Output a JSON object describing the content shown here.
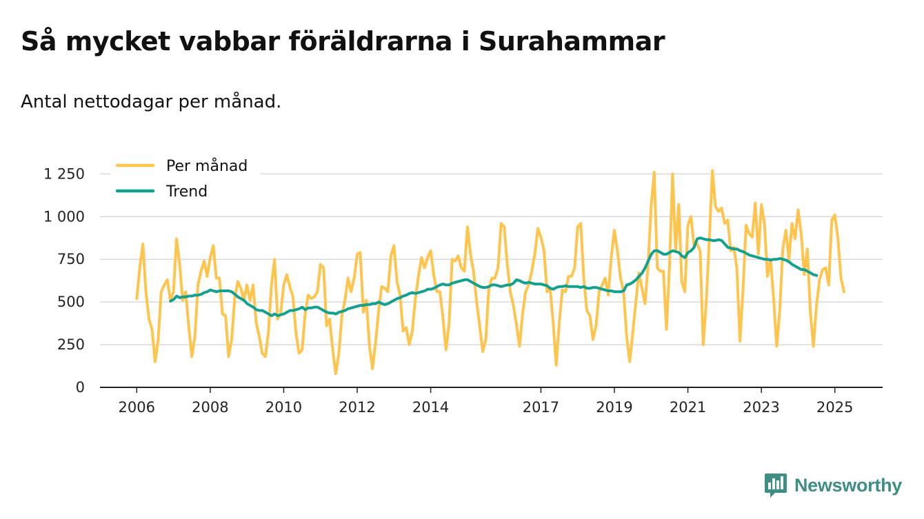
{
  "title": "Så mycket vabbar föräldrarna i Surahammar",
  "subtitle": "Antal nettodagar per månad.",
  "brand": {
    "name": "Newsworthy",
    "icon": "bar-chart-speech-bubble-icon",
    "color": "#3d8f85"
  },
  "chart_data": {
    "type": "line",
    "title": "Så mycket vabbar föräldrarna i Surahammar",
    "subtitle": "Antal nettodagar per månad.",
    "xlabel": "",
    "ylabel": "",
    "x_start": 2006.0,
    "x_step_months": 1,
    "xlim": [
      2005.0,
      2026.3
    ],
    "ylim": [
      0,
      1320
    ],
    "y_ticks": [
      {
        "value": 0,
        "label": "0"
      },
      {
        "value": 250,
        "label": "250"
      },
      {
        "value": 500,
        "label": "500"
      },
      {
        "value": 750,
        "label": "750"
      },
      {
        "value": 1000,
        "label": "1 000"
      },
      {
        "value": 1250,
        "label": "1 250"
      }
    ],
    "x_ticks": [
      {
        "value": 2006,
        "label": "2006"
      },
      {
        "value": 2008,
        "label": "2008"
      },
      {
        "value": 2010,
        "label": "2010"
      },
      {
        "value": 2012,
        "label": "2012"
      },
      {
        "value": 2014,
        "label": "2014"
      },
      {
        "value": 2017,
        "label": "2017"
      },
      {
        "value": 2019,
        "label": "2019"
      },
      {
        "value": 2021,
        "label": "2021"
      },
      {
        "value": 2023,
        "label": "2023"
      },
      {
        "value": 2025,
        "label": "2025"
      }
    ],
    "grid": true,
    "legend_position": "top-left",
    "series": [
      {
        "name": "Per månad",
        "color": "#ffc44d",
        "start": 2006.0,
        "values": [
          520,
          700,
          840,
          560,
          400,
          340,
          150,
          280,
          560,
          600,
          630,
          510,
          560,
          870,
          720,
          510,
          560,
          350,
          180,
          300,
          600,
          680,
          740,
          650,
          760,
          830,
          640,
          640,
          430,
          420,
          180,
          280,
          520,
          620,
          580,
          510,
          600,
          510,
          600,
          380,
          300,
          200,
          180,
          320,
          600,
          750,
          400,
          430,
          600,
          660,
          590,
          530,
          320,
          200,
          220,
          430,
          540,
          520,
          530,
          560,
          720,
          700,
          360,
          400,
          220,
          80,
          200,
          420,
          510,
          640,
          560,
          640,
          780,
          790,
          440,
          510,
          240,
          110,
          260,
          450,
          590,
          580,
          560,
          770,
          830,
          620,
          540,
          330,
          350,
          250,
          330,
          520,
          650,
          760,
          700,
          760,
          800,
          660,
          560,
          560,
          410,
          220,
          370,
          750,
          740,
          770,
          700,
          680,
          940,
          780,
          680,
          500,
          360,
          210,
          280,
          580,
          640,
          640,
          700,
          960,
          940,
          720,
          560,
          480,
          370,
          240,
          430,
          560,
          600,
          680,
          780,
          930,
          880,
          800,
          560,
          580,
          380,
          130,
          380,
          570,
          560,
          650,
          650,
          700,
          940,
          960,
          640,
          450,
          420,
          280,
          360,
          560,
          600,
          640,
          540,
          770,
          920,
          800,
          640,
          560,
          300,
          150,
          320,
          500,
          670,
          580,
          490,
          720,
          1060,
          1260,
          700,
          680,
          680,
          340,
          710,
          1250,
          800,
          1070,
          620,
          560,
          950,
          1000,
          830,
          840,
          800,
          250,
          500,
          870,
          1270,
          1060,
          1030,
          1050,
          960,
          980,
          800,
          820,
          700,
          270,
          570,
          950,
          900,
          880,
          1080,
          780,
          1070,
          960,
          650,
          750,
          520,
          240,
          450,
          810,
          920,
          750,
          960,
          870,
          1040,
          900,
          660,
          810,
          440,
          240,
          480,
          630,
          690,
          700,
          600,
          980,
          1010,
          870,
          640,
          560
        ]
      },
      {
        "name": "Trend",
        "color": "#14a08e",
        "start": 2006.92,
        "values": [
          505,
          515,
          535,
          525,
          530,
          530,
          535,
          535,
          540,
          540,
          545,
          555,
          560,
          570,
          565,
          560,
          565,
          565,
          565,
          565,
          560,
          545,
          530,
          520,
          510,
          490,
          480,
          470,
          455,
          450,
          450,
          440,
          430,
          420,
          430,
          420,
          425,
          430,
          440,
          450,
          450,
          455,
          460,
          470,
          455,
          465,
          465,
          470,
          470,
          460,
          450,
          440,
          435,
          435,
          430,
          440,
          445,
          450,
          460,
          465,
          470,
          475,
          480,
          480,
          485,
          485,
          490,
          490,
          500,
          490,
          485,
          490,
          500,
          510,
          520,
          525,
          535,
          540,
          550,
          555,
          550,
          555,
          560,
          565,
          575,
          575,
          580,
          590,
          600,
          605,
          600,
          600,
          610,
          615,
          620,
          625,
          630,
          630,
          620,
          610,
          600,
          590,
          585,
          585,
          590,
          600,
          600,
          595,
          590,
          595,
          600,
          600,
          610,
          630,
          625,
          615,
          610,
          615,
          610,
          605,
          605,
          605,
          600,
          595,
          580,
          575,
          585,
          590,
          590,
          595,
          590,
          590,
          590,
          590,
          585,
          590,
          580,
          580,
          585,
          585,
          580,
          575,
          570,
          565,
          565,
          560,
          560,
          560,
          565,
          600,
          605,
          615,
          630,
          650,
          670,
          700,
          740,
          780,
          800,
          800,
          790,
          780,
          780,
          790,
          800,
          795,
          790,
          770,
          760,
          790,
          800,
          820,
          870,
          875,
          870,
          865,
          865,
          860,
          860,
          865,
          860,
          840,
          820,
          815,
          810,
          810,
          800,
          795,
          785,
          775,
          770,
          765,
          760,
          755,
          750,
          750,
          745,
          750,
          750,
          755,
          750,
          745,
          735,
          720,
          710,
          700,
          690,
          690,
          680,
          670,
          660,
          655
        ]
      }
    ]
  }
}
